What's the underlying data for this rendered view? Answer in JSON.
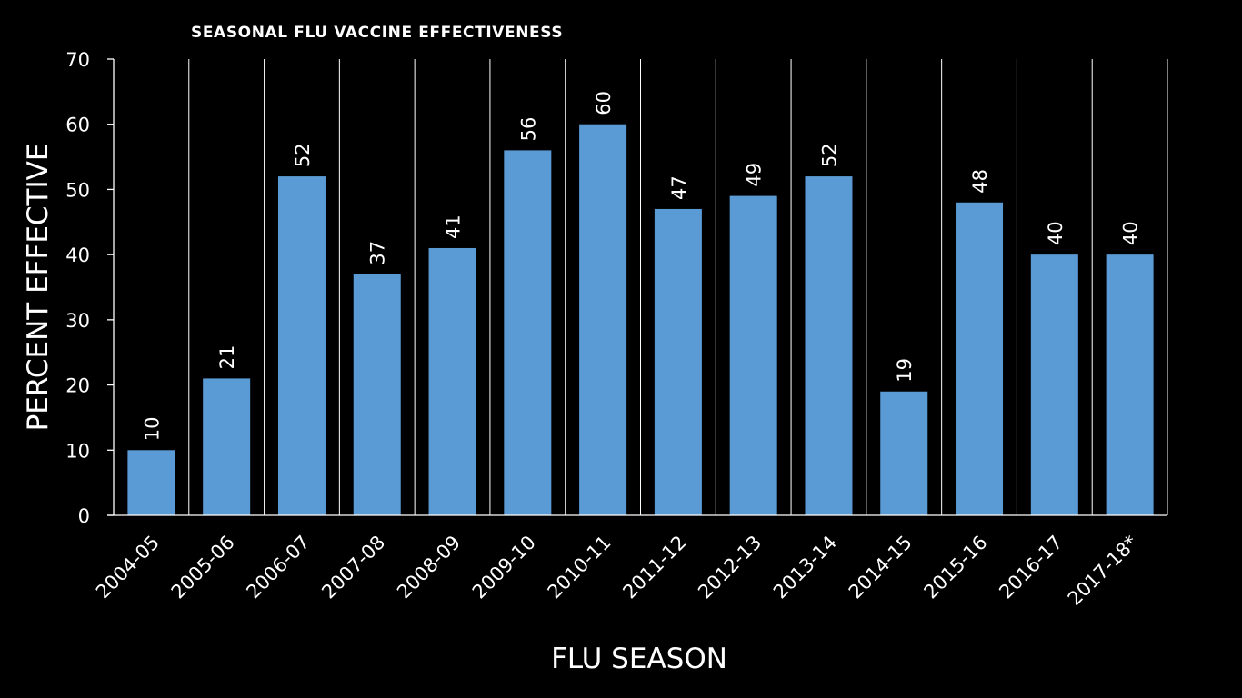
{
  "chart_data": {
    "type": "bar",
    "title": "SEASONAL FLU VACCINE EFFECTIVENESS",
    "xlabel": "FLU SEASON",
    "ylabel": "PERCENT EFFECTIVE",
    "categories": [
      "2004-05",
      "2005-06",
      "2006-07",
      "2007-08",
      "2008-09",
      "2009-10",
      "2010-11",
      "2011-12",
      "2012-13",
      "2013-14",
      "2014-15",
      "2015-16",
      "2016-17",
      "2017-18*"
    ],
    "values": [
      10,
      21,
      52,
      37,
      41,
      56,
      60,
      47,
      49,
      52,
      19,
      48,
      40,
      40
    ],
    "ylim": [
      0,
      70
    ],
    "yticks": [
      0,
      10,
      20,
      30,
      40,
      50,
      60,
      70
    ],
    "grid": "vertical separators between categories",
    "legend": "none",
    "bar_color": "#5b9bd5",
    "background_color": "#000000",
    "text_color": "#ffffff"
  }
}
